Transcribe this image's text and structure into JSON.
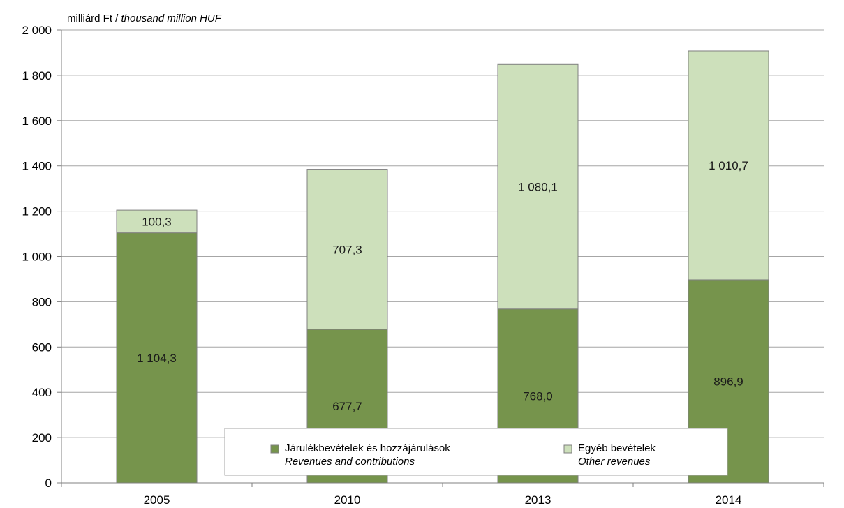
{
  "chart_data": {
    "type": "bar",
    "stacked": true,
    "unit_label": {
      "main": "milliárd Ft / ",
      "italic": "thousand million HUF"
    },
    "categories": [
      "2005",
      "2010",
      "2013",
      "2014"
    ],
    "series": [
      {
        "name": "Járulékbevételek és hozzájárulások",
        "name_en": "Revenues and contributions",
        "color": "#76944c",
        "values": [
          1104.3,
          677.7,
          768.0,
          896.9
        ],
        "labels": [
          "1 104,3",
          "677,7",
          "768,0",
          "896,9"
        ]
      },
      {
        "name": "Egyéb bevételek",
        "name_en": "Other revenues",
        "color": "#cde0bb",
        "values": [
          100.3,
          707.3,
          1080.1,
          1010.7
        ],
        "labels": [
          "100,3",
          "707,3",
          "1 080,1",
          "1 010,7"
        ]
      }
    ],
    "ylim": [
      0,
      2000
    ],
    "yticks": [
      0,
      200,
      400,
      600,
      800,
      1000,
      1200,
      1400,
      1600,
      1800,
      2000
    ],
    "ytick_labels": [
      "0",
      "200",
      "400",
      "600",
      "800",
      "1 000",
      "1 200",
      "1 400",
      "1 600",
      "1 800",
      "2 000"
    ],
    "grid": true,
    "legend_position": "bottom-center"
  }
}
